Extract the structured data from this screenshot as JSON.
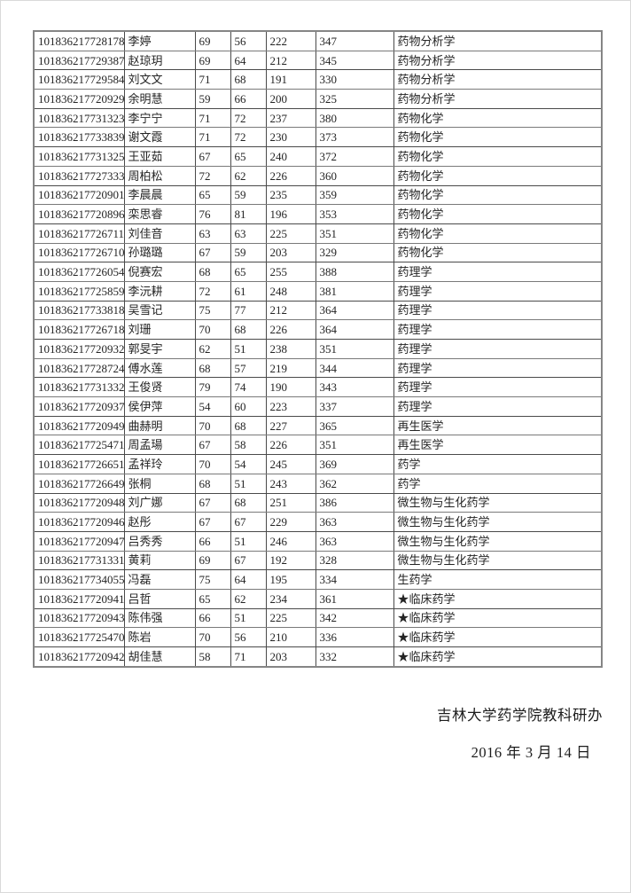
{
  "page": {
    "background": "#ffffff",
    "text_color": "#242424",
    "grid_color": "#4a4a4a"
  },
  "table": {
    "rows": [
      {
        "id": "101836217728178",
        "name": "李婷",
        "score1": "69",
        "score2": "56",
        "score3": "222",
        "total": "347",
        "major": "药物分析学"
      },
      {
        "id": "101836217729387",
        "name": "赵琼玥",
        "score1": "69",
        "score2": "64",
        "score3": "212",
        "total": "345",
        "major": "药物分析学"
      },
      {
        "id": "101836217729584",
        "name": "刘文文",
        "score1": "71",
        "score2": "68",
        "score3": "191",
        "total": "330",
        "major": "药物分析学"
      },
      {
        "id": "101836217720929",
        "name": "余明慧",
        "score1": "59",
        "score2": "66",
        "score3": "200",
        "total": "325",
        "major": "药物分析学"
      },
      {
        "id": "101836217731323",
        "name": "李宁宁",
        "score1": "71",
        "score2": "72",
        "score3": "237",
        "total": "380",
        "major": "药物化学"
      },
      {
        "id": "101836217733839",
        "name": "谢文霞",
        "score1": "71",
        "score2": "72",
        "score3": "230",
        "total": "373",
        "major": "药物化学"
      },
      {
        "id": "101836217731325",
        "name": "王亚茹",
        "score1": "67",
        "score2": "65",
        "score3": "240",
        "total": "372",
        "major": "药物化学"
      },
      {
        "id": "101836217727333",
        "name": "周柏松",
        "score1": "72",
        "score2": "62",
        "score3": "226",
        "total": "360",
        "major": "药物化学"
      },
      {
        "id": "101836217720901",
        "name": "李晨晨",
        "score1": "65",
        "score2": "59",
        "score3": "235",
        "total": "359",
        "major": "药物化学"
      },
      {
        "id": "101836217720896",
        "name": "栾思睿",
        "score1": "76",
        "score2": "81",
        "score3": "196",
        "total": "353",
        "major": "药物化学"
      },
      {
        "id": "101836217726711",
        "name": "刘佳音",
        "score1": "63",
        "score2": "63",
        "score3": "225",
        "total": "351",
        "major": "药物化学"
      },
      {
        "id": "101836217726710",
        "name": "孙璐璐",
        "score1": "67",
        "score2": "59",
        "score3": "203",
        "total": "329",
        "major": "药物化学"
      },
      {
        "id": "101836217726054",
        "name": "倪赛宏",
        "score1": "68",
        "score2": "65",
        "score3": "255",
        "total": "388",
        "major": "药理学"
      },
      {
        "id": "101836217725859",
        "name": "李沅耕",
        "score1": "72",
        "score2": "61",
        "score3": "248",
        "total": "381",
        "major": "药理学"
      },
      {
        "id": "101836217733818",
        "name": "吴雪记",
        "score1": "75",
        "score2": "77",
        "score3": "212",
        "total": "364",
        "major": "药理学"
      },
      {
        "id": "101836217726718",
        "name": "刘珊",
        "score1": "70",
        "score2": "68",
        "score3": "226",
        "total": "364",
        "major": "药理学"
      },
      {
        "id": "101836217720932",
        "name": "郭旻宇",
        "score1": "62",
        "score2": "51",
        "score3": "238",
        "total": "351",
        "major": "药理学"
      },
      {
        "id": "101836217728724",
        "name": "傅水莲",
        "score1": "68",
        "score2": "57",
        "score3": "219",
        "total": "344",
        "major": "药理学"
      },
      {
        "id": "101836217731332",
        "name": "王俊贤",
        "score1": "79",
        "score2": "74",
        "score3": "190",
        "total": "343",
        "major": "药理学"
      },
      {
        "id": "101836217720937",
        "name": "侯伊萍",
        "score1": "54",
        "score2": "60",
        "score3": "223",
        "total": "337",
        "major": "药理学"
      },
      {
        "id": "101836217720949",
        "name": "曲赫明",
        "score1": "70",
        "score2": "68",
        "score3": "227",
        "total": "365",
        "major": "再生医学"
      },
      {
        "id": "101836217725471",
        "name": "周孟瑒",
        "score1": "67",
        "score2": "58",
        "score3": "226",
        "total": "351",
        "major": "再生医学"
      },
      {
        "id": "101836217726651",
        "name": "孟祥玲",
        "score1": "70",
        "score2": "54",
        "score3": "245",
        "total": "369",
        "major": "药学"
      },
      {
        "id": "101836217726649",
        "name": "张桐",
        "score1": "68",
        "score2": "51",
        "score3": "243",
        "total": "362",
        "major": "药学"
      },
      {
        "id": "101836217720948",
        "name": "刘广娜",
        "score1": "67",
        "score2": "68",
        "score3": "251",
        "total": "386",
        "major": "微生物与生化药学"
      },
      {
        "id": "101836217720946",
        "name": "赵彤",
        "score1": "67",
        "score2": "67",
        "score3": "229",
        "total": "363",
        "major": "微生物与生化药学"
      },
      {
        "id": "101836217720947",
        "name": "吕秀秀",
        "score1": "66",
        "score2": "51",
        "score3": "246",
        "total": "363",
        "major": "微生物与生化药学"
      },
      {
        "id": "101836217731331",
        "name": "黄莉",
        "score1": "69",
        "score2": "67",
        "score3": "192",
        "total": "328",
        "major": "微生物与生化药学"
      },
      {
        "id": "101836217734055",
        "name": "冯磊",
        "score1": "75",
        "score2": "64",
        "score3": "195",
        "total": "334",
        "major": "生药学"
      },
      {
        "id": "101836217720941",
        "name": "吕哲",
        "score1": "65",
        "score2": "62",
        "score3": "234",
        "total": "361",
        "major": "★临床药学"
      },
      {
        "id": "101836217720943",
        "name": "陈伟强",
        "score1": "66",
        "score2": "51",
        "score3": "225",
        "total": "342",
        "major": "★临床药学"
      },
      {
        "id": "101836217725470",
        "name": "陈岩",
        "score1": "70",
        "score2": "56",
        "score3": "210",
        "total": "336",
        "major": "★临床药学"
      },
      {
        "id": "101836217720942",
        "name": "胡佳慧",
        "score1": "58",
        "score2": "71",
        "score3": "203",
        "total": "332",
        "major": "★临床药学"
      }
    ]
  },
  "footer": {
    "signature": "吉林大学药学院教科研办",
    "date": "2016 年 3 月 14 日"
  }
}
